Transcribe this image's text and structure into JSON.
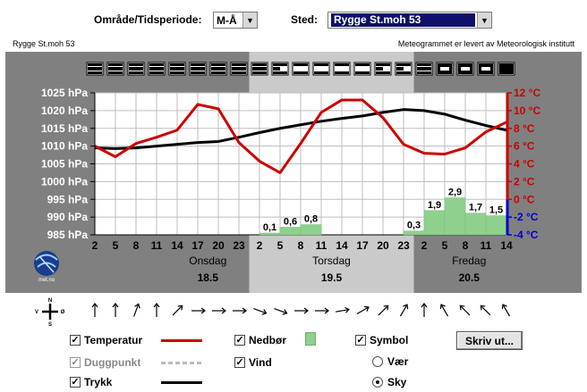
{
  "header": {
    "period_label": "Område/Tidsperiode:",
    "period_value": "M-Å",
    "place_label": "Sted:",
    "place_value": "Rygge St.moh 53"
  },
  "subheader": {
    "station": "Rygge St.moh 53",
    "credit": "Meteogrammet er levert av Meteorologisk institutt"
  },
  "logo_text": "met.no",
  "days": [
    {
      "name": "Onsdag",
      "date": "18.5"
    },
    {
      "name": "Torsdag",
      "date": "19.5"
    },
    {
      "name": "Fredag",
      "date": "20.5"
    }
  ],
  "compass": {
    "n": "N",
    "s": "S",
    "w": "V",
    "e": "Ø"
  },
  "controls": {
    "temperatur": "Temperatur",
    "duggpunkt": "Duggpunkt",
    "trykk": "Trykk",
    "nedbor": "Nedbør",
    "vind": "Vind",
    "symbol": "Symbol",
    "vaer": "Vær",
    "sky": "Sky",
    "print_button": "Skriv ut..."
  },
  "colors": {
    "temperature": "#cc0000",
    "pressure": "#000000",
    "dewpoint": "#bbbbbb",
    "precip": "#8fd08f",
    "negative_temp_axis": "#0000cc"
  },
  "chart_data": {
    "type": "line",
    "x_ticks": [
      "2",
      "5",
      "8",
      "11",
      "14",
      "17",
      "20",
      "23",
      "2",
      "5",
      "8",
      "11",
      "14",
      "17",
      "20",
      "23",
      "2",
      "5",
      "8",
      "11",
      "14"
    ],
    "pressure_axis": {
      "unit": "hPa",
      "ticks": [
        "1025 hPa",
        "1020 hPa",
        "1015 hPa",
        "1010 hPa",
        "1005 hPa",
        "1000 hPa",
        "995 hPa",
        "990 hPa",
        "985 hPa"
      ],
      "range": [
        985,
        1025
      ]
    },
    "temperature_axis": {
      "unit": "°C",
      "ticks": [
        "12 °C",
        "10 °C",
        "8 °C",
        "6 °C",
        "4 °C",
        "2 °C",
        "0 °C",
        "-2 °C",
        "-4 °C"
      ],
      "range": [
        -4,
        12
      ]
    },
    "series": [
      {
        "name": "Temperatur",
        "values": [
          6.0,
          4.8,
          6.3,
          7.0,
          7.8,
          10.7,
          10.2,
          6.4,
          4.3,
          3.0,
          6.3,
          9.8,
          11.2,
          11.2,
          9.2,
          6.2,
          5.2,
          5.1,
          5.8,
          7.6,
          8.7
        ]
      },
      {
        "name": "Trykk",
        "values": [
          1009.5,
          1009.3,
          1009.5,
          1010.0,
          1010.5,
          1011.0,
          1011.3,
          1012.5,
          1013.8,
          1015.0,
          1016.0,
          1017.0,
          1017.8,
          1018.5,
          1019.5,
          1020.3,
          1020.0,
          1019.0,
          1017.3,
          1015.8,
          1014.5
        ]
      },
      {
        "name": "Nedbør",
        "bars": [
          {
            "from": 8,
            "to": 9,
            "value": 0.1,
            "label": "0,1"
          },
          {
            "from": 9,
            "to": 10,
            "value": 0.6,
            "label": "0,6"
          },
          {
            "from": 10,
            "to": 11,
            "value": 0.8,
            "label": "0,8"
          },
          {
            "from": 15,
            "to": 16,
            "value": 0.3,
            "label": "0,3"
          },
          {
            "from": 16,
            "to": 17,
            "value": 1.9,
            "label": "1,9"
          },
          {
            "from": 17,
            "to": 18,
            "value": 2.9,
            "label": "2,9"
          },
          {
            "from": 18,
            "to": 19,
            "value": 1.7,
            "label": "1,7"
          },
          {
            "from": 19,
            "to": 20,
            "value": 1.5,
            "label": "1,5"
          }
        ]
      }
    ],
    "cloud_cover": [
      3,
      3,
      3,
      3,
      3,
      3,
      3,
      3,
      3,
      1,
      0,
      0,
      0,
      0,
      1,
      1,
      4,
      6,
      7,
      6,
      5
    ],
    "wind_direction_deg": [
      0,
      0,
      20,
      0,
      45,
      90,
      90,
      90,
      110,
      110,
      90,
      90,
      80,
      60,
      45,
      30,
      0,
      330,
      315,
      315,
      330
    ],
    "grid": true
  }
}
